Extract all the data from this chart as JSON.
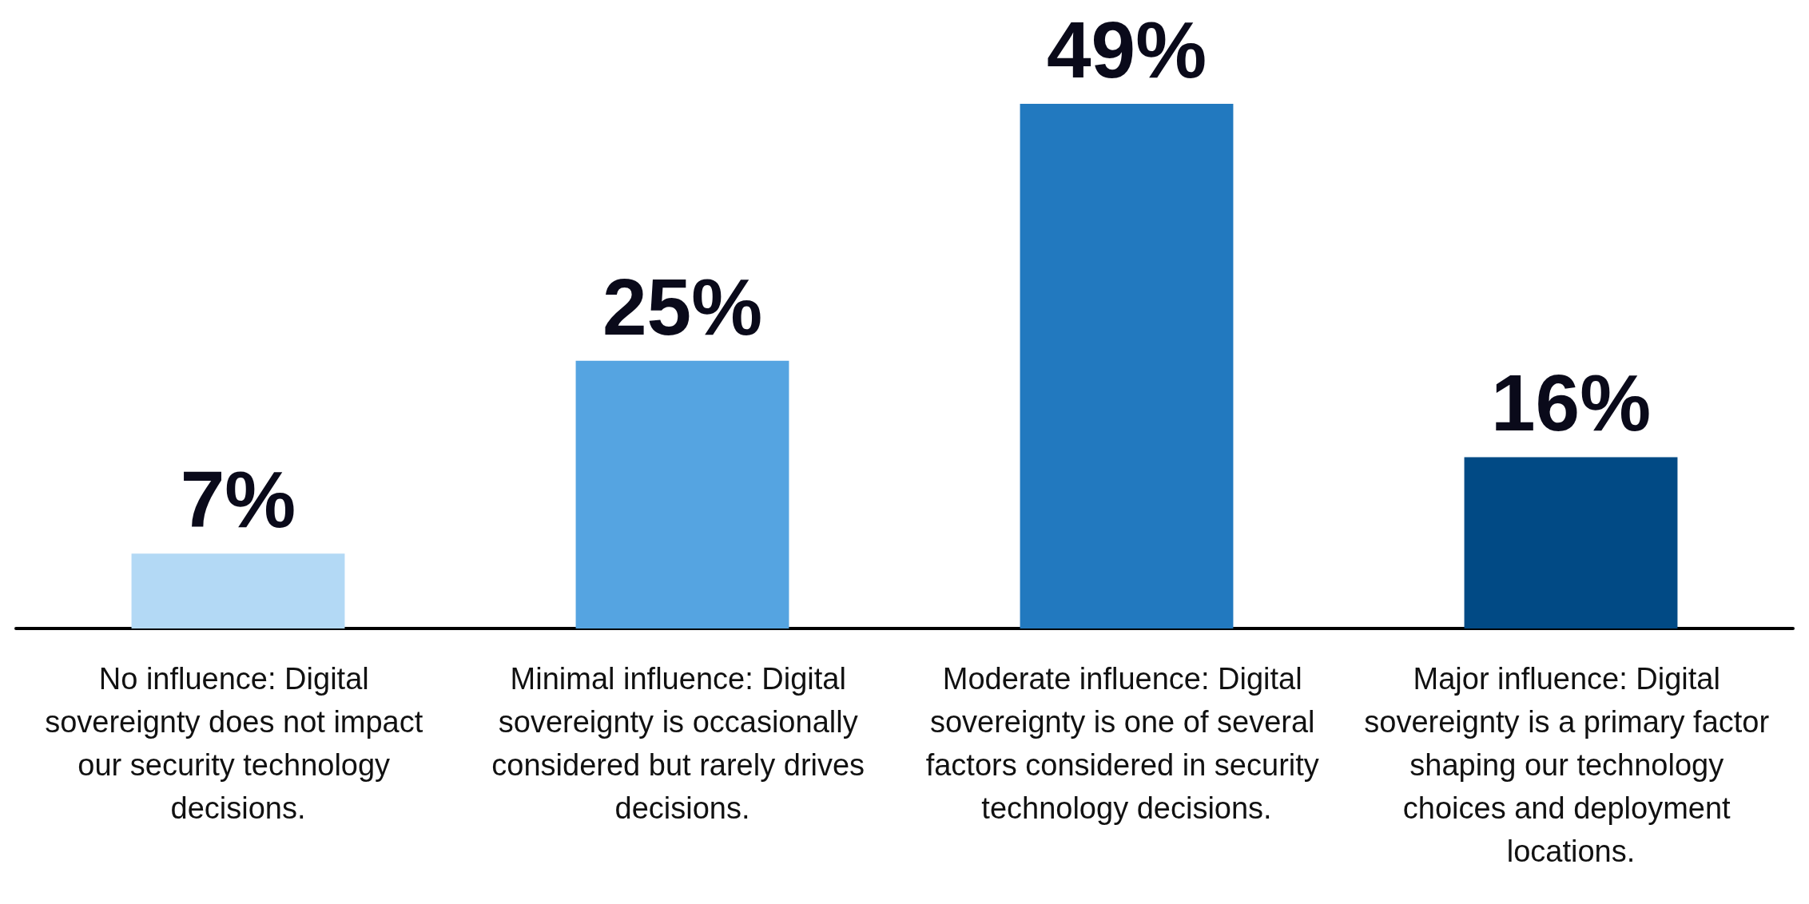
{
  "chart_data": {
    "type": "bar",
    "categories": [
      "No influence: Digital sovereignty does not impact our security technology decisions.",
      "Minimal influence: Digital sovereignty is occasionally considered but rarely drives decisions.",
      "Moderate influence: Digital sovereignty is one of several factors considered in security technology decisions.",
      "Major influence: Digital sovereignty is a primary factor shaping our technology choices and deployment locations."
    ],
    "values": [
      7,
      25,
      49,
      16
    ],
    "value_labels": [
      "7%",
      "25%",
      "49%",
      "16%"
    ],
    "colors": [
      "#b3d9f5",
      "#55a4e1",
      "#2279bf",
      "#014a85"
    ],
    "tick_labels": "x"
  }
}
